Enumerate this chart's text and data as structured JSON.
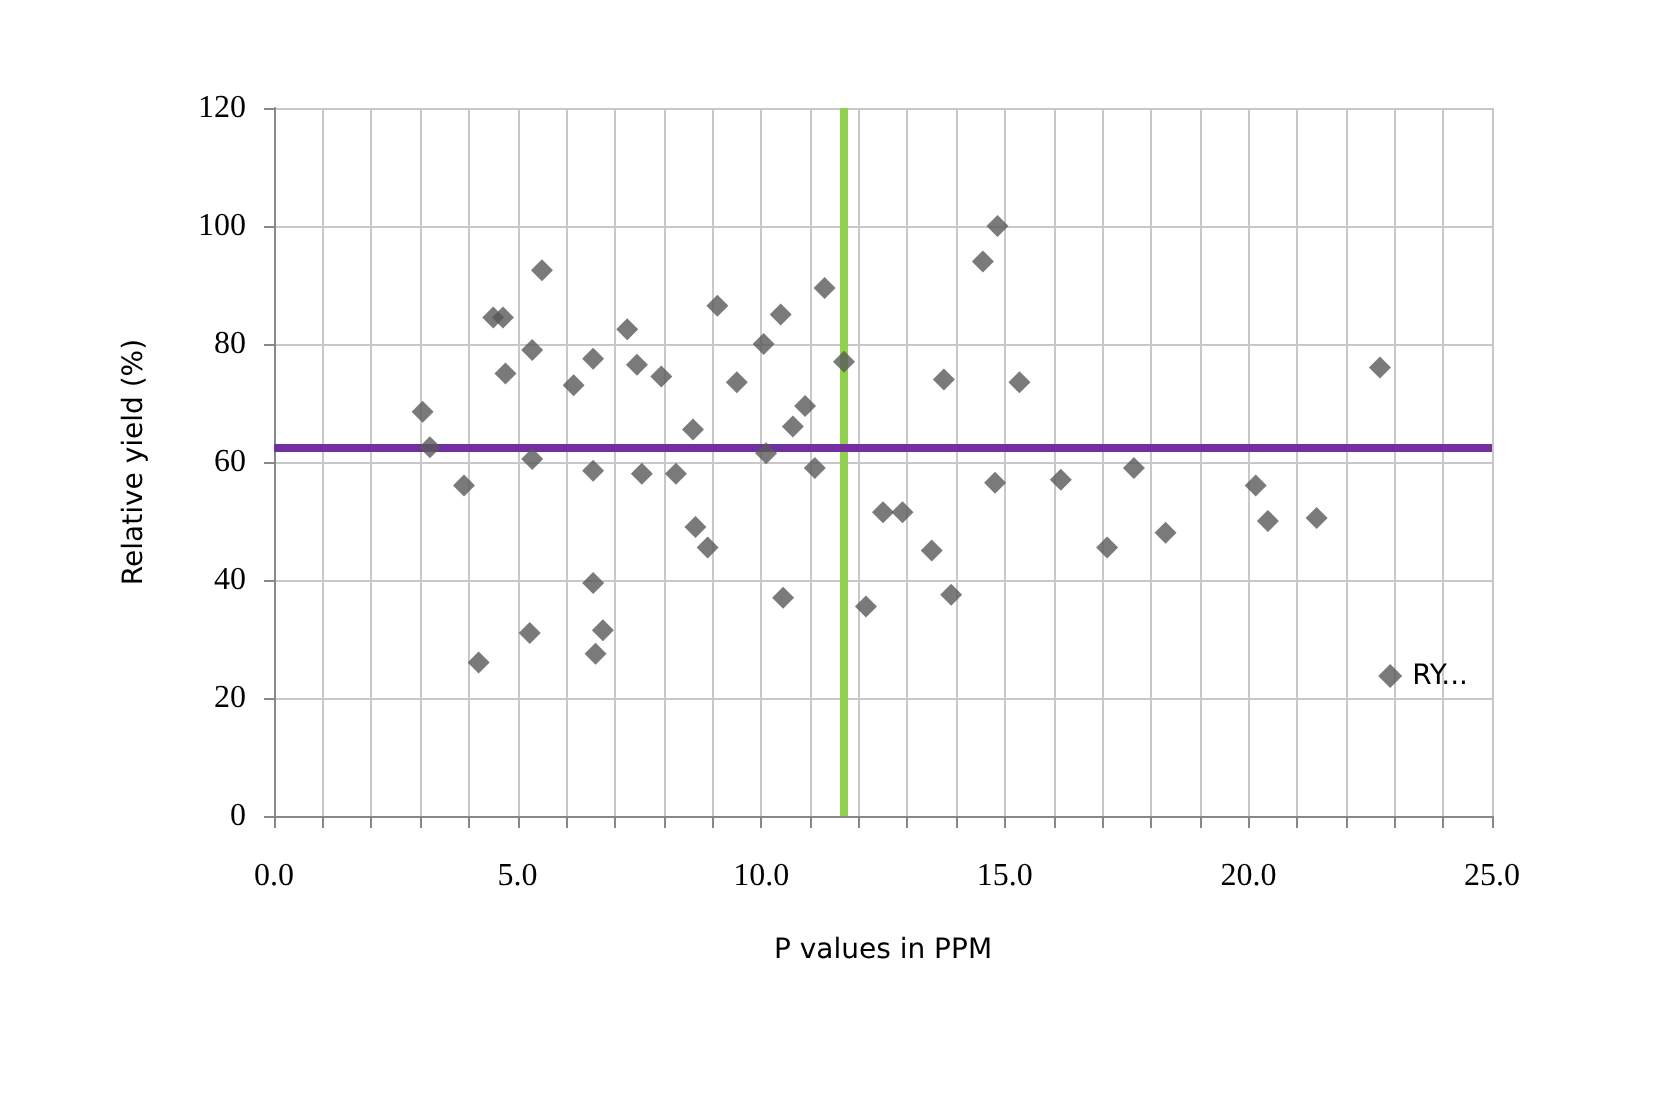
{
  "chart_data": {
    "type": "scatter",
    "xlabel": "P values in PPM",
    "ylabel": "Relative yield (%)",
    "xlim": [
      0,
      25
    ],
    "ylim": [
      0,
      120
    ],
    "xticks": [
      {
        "value": 0,
        "label": "0.0"
      },
      {
        "value": 1,
        "label": null
      },
      {
        "value": 2,
        "label": null
      },
      {
        "value": 3,
        "label": null
      },
      {
        "value": 4,
        "label": null
      },
      {
        "value": 5,
        "label": "5.0"
      },
      {
        "value": 6,
        "label": null
      },
      {
        "value": 7,
        "label": null
      },
      {
        "value": 8,
        "label": null
      },
      {
        "value": 9,
        "label": null
      },
      {
        "value": 10,
        "label": "10.0"
      },
      {
        "value": 11,
        "label": null
      },
      {
        "value": 12,
        "label": null
      },
      {
        "value": 13,
        "label": null
      },
      {
        "value": 14,
        "label": null
      },
      {
        "value": 15,
        "label": "15.0"
      },
      {
        "value": 16,
        "label": null
      },
      {
        "value": 17,
        "label": null
      },
      {
        "value": 18,
        "label": null
      },
      {
        "value": 19,
        "label": null
      },
      {
        "value": 20,
        "label": "20.0"
      },
      {
        "value": 21,
        "label": null
      },
      {
        "value": 22,
        "label": null
      },
      {
        "value": 23,
        "label": null
      },
      {
        "value": 24,
        "label": null
      },
      {
        "value": 25,
        "label": "25.0"
      }
    ],
    "yticks": [
      0,
      20,
      40,
      60,
      80,
      100,
      120
    ],
    "grid": true,
    "legend": "right",
    "marker": "diamond",
    "series": [
      {
        "name": "RY...",
        "color": "#595959",
        "x": [
          3.05,
          3.2,
          3.9,
          4.5,
          4.7,
          4.75,
          5.3,
          5.3,
          5.5,
          6.15,
          6.55,
          6.55,
          7.25,
          7.45,
          7.55,
          7.95,
          8.25,
          8.6,
          8.65,
          8.9,
          9.1,
          9.5,
          10.05,
          10.1,
          10.4,
          10.65,
          10.9,
          11.1,
          11.3,
          11.7,
          12.5,
          12.9,
          4.2,
          5.25,
          6.55,
          6.75,
          6.6,
          10.45,
          12.15,
          14.85,
          14.55,
          13.75,
          15.3,
          22.7,
          14.8,
          16.15,
          17.65,
          20.15,
          20.4,
          21.4,
          18.3,
          17.1,
          13.5,
          13.9
        ],
        "values": [
          68.5,
          62.5,
          56,
          84.5,
          84.5,
          75,
          79,
          60.5,
          92.5,
          73,
          77.5,
          58.5,
          82.5,
          76.5,
          58,
          74.5,
          58,
          65.5,
          49,
          45.5,
          86.5,
          73.5,
          80,
          61.5,
          85,
          66,
          69.5,
          59,
          89.5,
          77,
          51.5,
          51.5,
          26,
          31,
          39.5,
          31.5,
          27.5,
          37,
          35.5,
          100,
          94,
          74,
          73.5,
          76,
          56.5,
          57,
          59,
          56,
          50,
          50.5,
          48,
          45.5,
          45,
          37.5
        ]
      }
    ],
    "ref_lines": [
      {
        "axis": "x",
        "value": 11.7,
        "label": null,
        "color": "#92d050"
      },
      {
        "axis": "y",
        "value": 62.5,
        "label": null,
        "color": "#7030a0"
      }
    ]
  }
}
